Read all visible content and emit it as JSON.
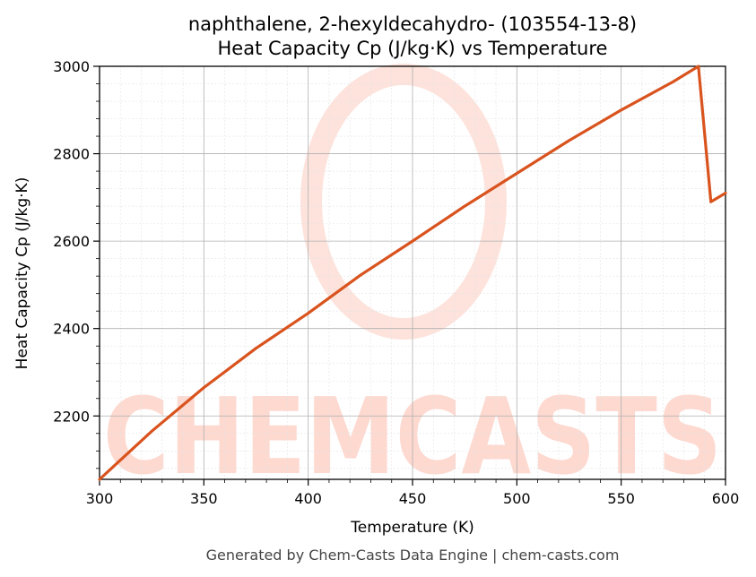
{
  "chart_data": {
    "type": "line",
    "title_line1": "naphthalene, 2-hexyldecahydro- (103554-13-8)",
    "title_line2": "Heat Capacity Cp (J/kg·K) vs Temperature",
    "xlabel": "Temperature (K)",
    "ylabel": "Heat Capacity Cp (J/kg·K)",
    "xlim": [
      300,
      600
    ],
    "ylim": [
      2055,
      3000
    ],
    "xticks": [
      300,
      350,
      400,
      450,
      500,
      550,
      600
    ],
    "yticks": [
      2200,
      2400,
      2600,
      2800,
      3000
    ],
    "grid": true,
    "series": [
      {
        "color": "#d9531e",
        "x": [
          300,
          325,
          350,
          375,
          400,
          425,
          450,
          475,
          500,
          525,
          550,
          575,
          587,
          593,
          600
        ],
        "y": [
          2055,
          2165,
          2265,
          2355,
          2435,
          2522,
          2600,
          2680,
          2755,
          2830,
          2900,
          2965,
          3000,
          2690,
          2710
        ]
      }
    ]
  },
  "footer": "Generated by Chem-Casts Data Engine | chem-casts.com",
  "watermark": "CHEMCASTS",
  "colors": {
    "line": "#d9531e",
    "watermark": "#fdd9d0"
  }
}
